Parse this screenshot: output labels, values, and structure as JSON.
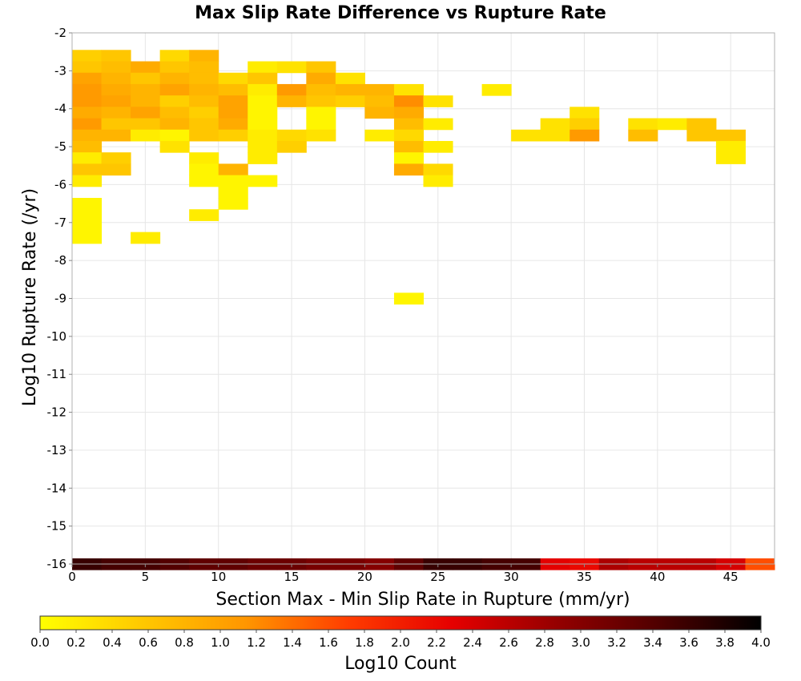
{
  "chart_data": {
    "type": "heatmap",
    "title": "Max Slip Rate Difference vs Rupture Rate",
    "xlabel": "Section Max - Min Slip Rate in Rupture (mm/yr)",
    "ylabel": "Log10 Rupture Rate (/yr)",
    "xlim": [
      0,
      48
    ],
    "ylim": [
      -16,
      -2
    ],
    "x_ticks": [
      "0",
      "5",
      "10",
      "15",
      "20",
      "25",
      "30",
      "35",
      "40",
      "45"
    ],
    "y_ticks": [
      "-2",
      "-3",
      "-4",
      "-5",
      "-6",
      "-7",
      "-8",
      "-9",
      "-10",
      "-11",
      "-12",
      "-13",
      "-14",
      "-15",
      "-16"
    ],
    "grid": true,
    "bin_width_x": 2,
    "bin_height_y": 0.3,
    "colorbar": {
      "label": "Log10 Count",
      "min": 0.0,
      "max": 4.0,
      "ticks": [
        "0.0",
        "0.2",
        "0.4",
        "0.6",
        "0.8",
        "1.0",
        "1.2",
        "1.4",
        "1.6",
        "1.8",
        "2.0",
        "2.2",
        "2.4",
        "2.6",
        "2.8",
        "3.0",
        "3.2",
        "3.4",
        "3.6",
        "3.8",
        "4.0"
      ],
      "colors": [
        "#ffff00",
        "#ffc800",
        "#ff9600",
        "#ff3c00",
        "#e60000",
        "#960000",
        "#500000",
        "#000000"
      ]
    },
    "cells": [
      [
        0,
        -2.6,
        0.5
      ],
      [
        2,
        -2.6,
        0.6
      ],
      [
        6,
        -2.6,
        0.4
      ],
      [
        8,
        -2.6,
        0.8
      ],
      [
        0,
        -2.9,
        0.6
      ],
      [
        2,
        -2.9,
        0.7
      ],
      [
        4,
        -2.9,
        0.9
      ],
      [
        6,
        -2.9,
        0.6
      ],
      [
        8,
        -2.9,
        0.7
      ],
      [
        12,
        -2.9,
        0.2
      ],
      [
        14,
        -2.9,
        0.3
      ],
      [
        16,
        -2.9,
        0.6
      ],
      [
        0,
        -3.2,
        1.0
      ],
      [
        2,
        -3.2,
        0.8
      ],
      [
        4,
        -3.2,
        0.6
      ],
      [
        6,
        -3.2,
        0.8
      ],
      [
        8,
        -3.2,
        0.7
      ],
      [
        10,
        -3.2,
        0.4
      ],
      [
        12,
        -3.2,
        0.6
      ],
      [
        16,
        -3.2,
        0.9
      ],
      [
        18,
        -3.2,
        0.3
      ],
      [
        0,
        -3.5,
        1.1
      ],
      [
        2,
        -3.5,
        0.9
      ],
      [
        4,
        -3.5,
        0.8
      ],
      [
        6,
        -3.5,
        1.0
      ],
      [
        8,
        -3.5,
        0.8
      ],
      [
        10,
        -3.5,
        0.7
      ],
      [
        12,
        -3.5,
        0.2
      ],
      [
        14,
        -3.5,
        1.1
      ],
      [
        16,
        -3.5,
        0.7
      ],
      [
        18,
        -3.5,
        0.8
      ],
      [
        20,
        -3.5,
        0.8
      ],
      [
        22,
        -3.5,
        0.3
      ],
      [
        28,
        -3.5,
        0.2
      ],
      [
        0,
        -3.8,
        1.1
      ],
      [
        2,
        -3.8,
        1.0
      ],
      [
        4,
        -3.8,
        0.8
      ],
      [
        6,
        -3.8,
        0.5
      ],
      [
        8,
        -3.8,
        0.7
      ],
      [
        10,
        -3.8,
        1.0
      ],
      [
        12,
        -3.8,
        0.1
      ],
      [
        14,
        -3.8,
        0.8
      ],
      [
        16,
        -3.8,
        0.6
      ],
      [
        18,
        -3.8,
        0.5
      ],
      [
        20,
        -3.8,
        0.7
      ],
      [
        22,
        -3.8,
        1.2
      ],
      [
        24,
        -3.8,
        0.3
      ],
      [
        0,
        -4.1,
        0.9
      ],
      [
        2,
        -4.1,
        0.8
      ],
      [
        4,
        -4.1,
        1.0
      ],
      [
        6,
        -4.1,
        0.7
      ],
      [
        8,
        -4.1,
        0.5
      ],
      [
        10,
        -4.1,
        1.0
      ],
      [
        12,
        -4.1,
        0.1
      ],
      [
        16,
        -4.1,
        0.1
      ],
      [
        20,
        -4.1,
        0.8
      ],
      [
        22,
        -4.1,
        0.9
      ],
      [
        34,
        -4.1,
        0.3
      ],
      [
        0,
        -4.4,
        1.1
      ],
      [
        2,
        -4.4,
        0.6
      ],
      [
        4,
        -4.4,
        0.6
      ],
      [
        6,
        -4.4,
        0.8
      ],
      [
        8,
        -4.4,
        0.6
      ],
      [
        10,
        -4.4,
        0.9
      ],
      [
        12,
        -4.4,
        0.1
      ],
      [
        16,
        -4.4,
        0.1
      ],
      [
        22,
        -4.4,
        0.7
      ],
      [
        24,
        -4.4,
        0.2
      ],
      [
        32,
        -4.4,
        0.3
      ],
      [
        34,
        -4.4,
        0.5
      ],
      [
        38,
        -4.4,
        0.3
      ],
      [
        40,
        -4.4,
        0.2
      ],
      [
        42,
        -4.4,
        0.6
      ],
      [
        0,
        -4.7,
        0.8
      ],
      [
        2,
        -4.7,
        0.8
      ],
      [
        4,
        -4.7,
        0.2
      ],
      [
        6,
        -4.7,
        0.1
      ],
      [
        8,
        -4.7,
        0.6
      ],
      [
        10,
        -4.7,
        0.5
      ],
      [
        12,
        -4.7,
        0.2
      ],
      [
        14,
        -4.7,
        0.4
      ],
      [
        16,
        -4.7,
        0.3
      ],
      [
        20,
        -4.7,
        0.2
      ],
      [
        22,
        -4.7,
        0.4
      ],
      [
        30,
        -4.7,
        0.3
      ],
      [
        32,
        -4.7,
        0.3
      ],
      [
        34,
        -4.7,
        1.1
      ],
      [
        38,
        -4.7,
        0.7
      ],
      [
        42,
        -4.7,
        0.6
      ],
      [
        44,
        -4.7,
        0.6
      ],
      [
        0,
        -5.0,
        0.7
      ],
      [
        6,
        -5.0,
        0.3
      ],
      [
        12,
        -5.0,
        0.2
      ],
      [
        14,
        -5.0,
        0.5
      ],
      [
        22,
        -5.0,
        0.7
      ],
      [
        24,
        -5.0,
        0.2
      ],
      [
        44,
        -5.0,
        0.2
      ],
      [
        0,
        -5.3,
        0.2
      ],
      [
        2,
        -5.3,
        0.5
      ],
      [
        8,
        -5.3,
        0.2
      ],
      [
        12,
        -5.3,
        0.2
      ],
      [
        22,
        -5.3,
        0.1
      ],
      [
        44,
        -5.3,
        0.2
      ],
      [
        0,
        -5.6,
        0.6
      ],
      [
        2,
        -5.6,
        0.6
      ],
      [
        8,
        -5.6,
        0.1
      ],
      [
        10,
        -5.6,
        0.8
      ],
      [
        22,
        -5.6,
        0.9
      ],
      [
        24,
        -5.6,
        0.4
      ],
      [
        0,
        -5.9,
        0.2
      ],
      [
        8,
        -5.9,
        0.1
      ],
      [
        10,
        -5.9,
        0.1
      ],
      [
        12,
        -5.9,
        0.1
      ],
      [
        24,
        -5.9,
        0.2
      ],
      [
        10,
        -6.2,
        0.1
      ],
      [
        0,
        -6.5,
        0.1
      ],
      [
        10,
        -6.5,
        0.1
      ],
      [
        0,
        -6.8,
        0.1
      ],
      [
        8,
        -6.8,
        0.2
      ],
      [
        0,
        -7.1,
        0.1
      ],
      [
        0,
        -7.4,
        0.1
      ],
      [
        4,
        -7.4,
        0.2
      ],
      [
        22,
        -9.0,
        0.1
      ],
      [
        0,
        -16.0,
        3.6
      ],
      [
        2,
        -16.0,
        3.5
      ],
      [
        4,
        -16.0,
        3.5
      ],
      [
        6,
        -16.0,
        3.4
      ],
      [
        8,
        -16.0,
        3.3
      ],
      [
        10,
        -16.0,
        3.3
      ],
      [
        12,
        -16.0,
        3.2
      ],
      [
        14,
        -16.0,
        3.2
      ],
      [
        16,
        -16.0,
        3.1
      ],
      [
        18,
        -16.0,
        3.1
      ],
      [
        20,
        -16.0,
        3.0
      ],
      [
        22,
        -16.0,
        3.3
      ],
      [
        24,
        -16.0,
        3.6
      ],
      [
        26,
        -16.0,
        3.6
      ],
      [
        28,
        -16.0,
        3.5
      ],
      [
        30,
        -16.0,
        3.5
      ],
      [
        32,
        -16.0,
        2.3
      ],
      [
        34,
        -16.0,
        2.2
      ],
      [
        36,
        -16.0,
        2.7
      ],
      [
        38,
        -16.0,
        2.6
      ],
      [
        40,
        -16.0,
        2.6
      ],
      [
        42,
        -16.0,
        2.6
      ],
      [
        44,
        -16.0,
        2.4
      ],
      [
        46,
        -16.0,
        1.6
      ]
    ]
  }
}
